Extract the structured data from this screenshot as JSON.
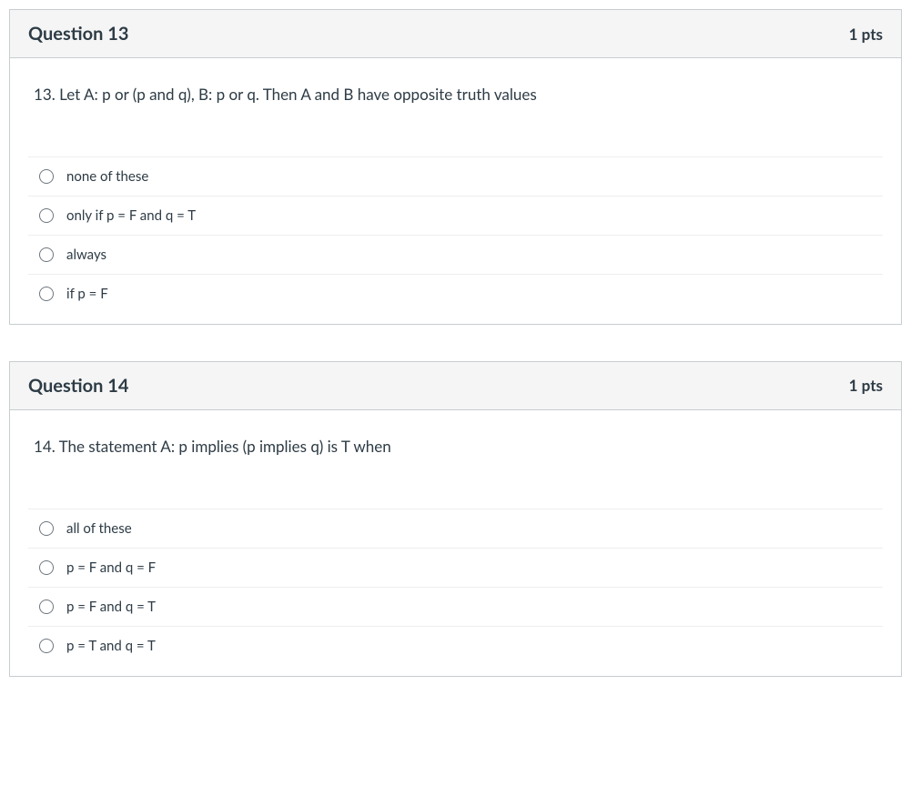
{
  "questions": [
    {
      "title": "Question 13",
      "points": "1 pts",
      "text": "13. Let A: p or (p and q),  B: p or q. Then A and B have opposite truth values",
      "options": [
        "none of these",
        "only if p = F and q = T",
        "always",
        "if p = F"
      ]
    },
    {
      "title": "Question 14",
      "points": "1 pts",
      "text": "14. The statement A: p implies (p implies q) is T when",
      "options": [
        "all of these",
        "p = F and q = F",
        "p = F and q = T",
        "p = T and q = T"
      ]
    }
  ],
  "colors": {
    "border": "#c7cdd1",
    "header_bg": "#f5f5f5",
    "text": "#2d3b45",
    "row_border": "#eeeeee",
    "radio_border": "#6e777f",
    "background": "#ffffff"
  }
}
